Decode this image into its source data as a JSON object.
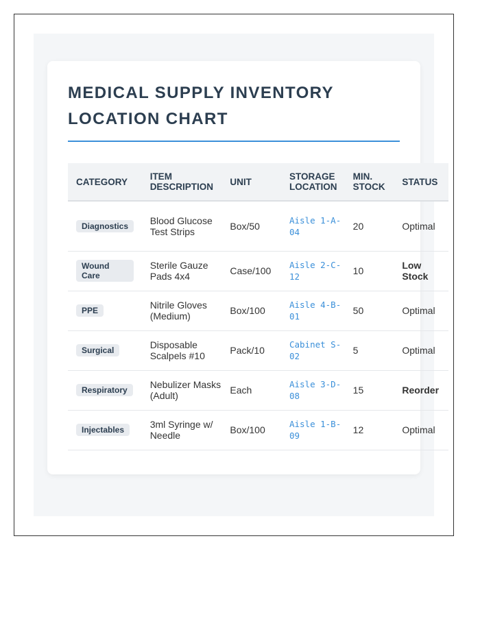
{
  "title": "MEDICAL SUPPLY INVENTORY LOCATION CHART",
  "colors": {
    "accent": "#3a8fd9",
    "heading": "#2c3e50",
    "alert": "#c0392b",
    "badge_bg": "#e8ebef"
  },
  "table": {
    "headers": [
      "CATEGORY",
      "ITEM DESCRIPTION",
      "UNIT",
      "STORAGE LOCATION",
      "MIN. STOCK",
      "STATUS"
    ],
    "rows": [
      {
        "category": "Diagnostics",
        "description": "Blood Glucose Test Strips",
        "unit": "Box/50",
        "location": "Aisle 1-A-04",
        "min_stock": "20",
        "status": "Optimal",
        "alert": false
      },
      {
        "category": "Wound Care",
        "description": "Sterile Gauze Pads 4x4",
        "unit": "Case/100",
        "location": "Aisle 2-C-12",
        "min_stock": "10",
        "status": "Low Stock",
        "alert": true
      },
      {
        "category": "PPE",
        "description": "Nitrile Gloves (Medium)",
        "unit": "Box/100",
        "location": "Aisle 4-B-01",
        "min_stock": "50",
        "status": "Optimal",
        "alert": false
      },
      {
        "category": "Surgical",
        "description": "Disposable Scalpels #10",
        "unit": "Pack/10",
        "location": "Cabinet S-02",
        "min_stock": "5",
        "status": "Optimal",
        "alert": false
      },
      {
        "category": "Respiratory",
        "description": "Nebulizer Masks (Adult)",
        "unit": "Each",
        "location": "Aisle 3-D-08",
        "min_stock": "15",
        "status": "Reorder",
        "alert": true
      },
      {
        "category": "Injectables",
        "description": "3ml Syringe w/ Needle",
        "unit": "Box/100",
        "location": "Aisle 1-B-09",
        "min_stock": "12",
        "status": "Optimal",
        "alert": false
      }
    ]
  }
}
